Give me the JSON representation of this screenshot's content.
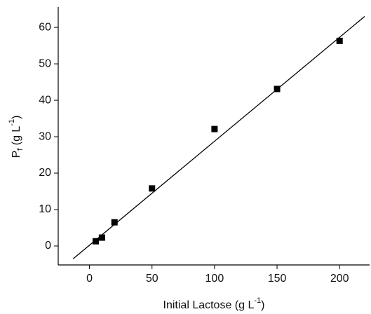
{
  "chart_data": {
    "type": "scatter",
    "xlabel_parts": [
      "Initial Lactose (g L",
      "-1",
      ")"
    ],
    "ylabel_parts": [
      "P",
      "f",
      " (g L",
      "-1",
      ")"
    ],
    "xlim": [
      -25,
      224
    ],
    "xticks": [
      0,
      50,
      100,
      150,
      200
    ],
    "ylim": [
      -5.2,
      65.6
    ],
    "yticks": [
      0,
      10,
      20,
      30,
      40,
      50,
      60
    ],
    "series": [
      {
        "style": "marker",
        "color": "#000000",
        "x": [
          5,
          10,
          20,
          50,
          100,
          150,
          200
        ],
        "values": [
          1.3,
          2.3,
          6.5,
          15.8,
          32.1,
          43.1,
          56.3
        ]
      },
      {
        "style": "line",
        "color": "#000000",
        "x": [
          -13,
          220
        ],
        "values": [
          -3.5,
          63
        ]
      }
    ]
  }
}
